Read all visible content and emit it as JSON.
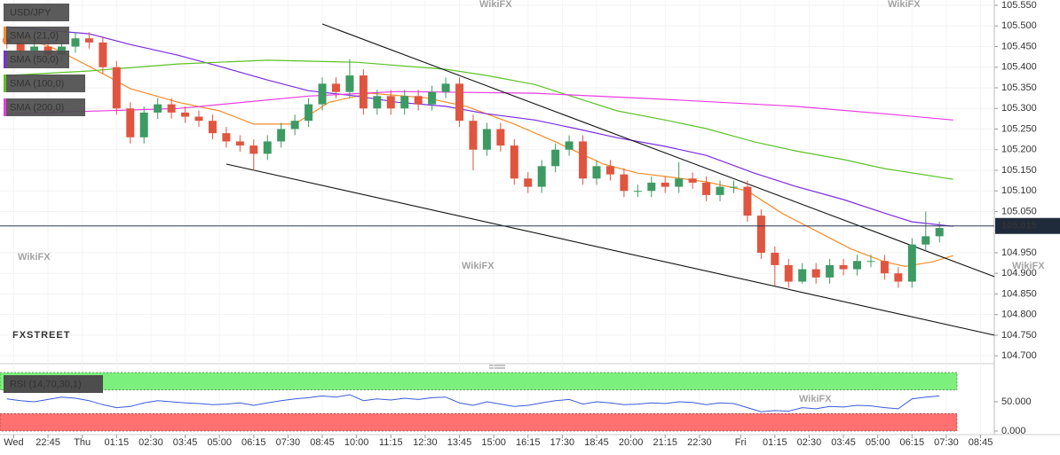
{
  "chart_data": [
    {
      "type": "candlestick",
      "title": "USD/JPY",
      "up_color": "#3d9a62",
      "down_color": "#e0553f",
      "grid": true,
      "x": [
        -6,
        -4,
        -2,
        0,
        2,
        4,
        6,
        8,
        10,
        12,
        14,
        16,
        18,
        20,
        22,
        24,
        26,
        28,
        30,
        32,
        34,
        36,
        38,
        40,
        42,
        44,
        46,
        48,
        50,
        52,
        54,
        56,
        58,
        60,
        62,
        64,
        66,
        68,
        70,
        72,
        74,
        76,
        78,
        80,
        82,
        84,
        86,
        88,
        90,
        92,
        94,
        96,
        98,
        100,
        102,
        104,
        106,
        108,
        110,
        112,
        114,
        116,
        118,
        120,
        122,
        124,
        126,
        128,
        130
      ],
      "open": [
        105.47,
        105.46,
        105.44,
        105.45,
        105.43,
        105.45,
        105.47,
        105.46,
        105.4,
        105.3,
        105.23,
        105.29,
        105.31,
        105.29,
        105.28,
        105.27,
        105.24,
        105.22,
        105.21,
        105.19,
        105.22,
        105.25,
        105.27,
        105.31,
        105.36,
        105.34,
        105.38,
        105.3,
        105.33,
        105.3,
        105.33,
        105.31,
        105.34,
        105.36,
        105.27,
        105.2,
        105.25,
        105.21,
        105.13,
        105.11,
        105.16,
        105.2,
        105.22,
        105.13,
        105.16,
        105.14,
        105.1,
        105.1,
        105.12,
        105.11,
        105.13,
        105.12,
        105.09,
        105.11,
        105.11,
        105.04,
        104.95,
        104.92,
        104.88,
        104.91,
        104.89,
        104.92,
        104.91,
        104.93,
        104.93,
        104.9,
        104.88,
        104.97,
        104.99
      ],
      "high": [
        105.485,
        105.475,
        105.465,
        105.465,
        105.465,
        105.485,
        105.485,
        105.475,
        105.415,
        105.315,
        105.305,
        105.325,
        105.325,
        105.305,
        105.295,
        105.285,
        105.255,
        105.235,
        105.225,
        105.235,
        105.265,
        105.285,
        105.325,
        105.375,
        105.375,
        105.42,
        105.395,
        105.345,
        105.345,
        105.345,
        105.345,
        105.355,
        105.375,
        105.375,
        105.285,
        105.265,
        105.265,
        105.225,
        105.145,
        105.175,
        105.215,
        105.235,
        105.235,
        105.175,
        105.175,
        105.155,
        105.115,
        105.135,
        105.135,
        105.17,
        105.145,
        105.135,
        105.125,
        105.125,
        105.125,
        105.055,
        104.965,
        104.935,
        104.925,
        104.925,
        104.935,
        104.935,
        104.945,
        104.945,
        104.945,
        104.915,
        104.985,
        105.05,
        105.025
      ],
      "low": [
        105.445,
        105.425,
        105.425,
        105.415,
        105.415,
        105.435,
        105.445,
        105.385,
        105.285,
        105.215,
        105.215,
        105.275,
        105.275,
        105.265,
        105.255,
        105.225,
        105.205,
        105.195,
        105.15,
        105.175,
        105.205,
        105.235,
        105.255,
        105.295,
        105.325,
        105.325,
        105.285,
        105.285,
        105.285,
        105.285,
        105.295,
        105.295,
        105.325,
        105.255,
        105.15,
        105.185,
        105.195,
        105.115,
        105.095,
        105.095,
        105.145,
        105.185,
        105.115,
        105.115,
        105.125,
        105.085,
        105.085,
        105.085,
        105.095,
        105.095,
        105.105,
        105.075,
        105.075,
        105.095,
        105.025,
        104.935,
        104.87,
        104.865,
        104.875,
        104.875,
        104.875,
        104.895,
        104.895,
        104.915,
        104.885,
        104.865,
        104.865,
        104.955,
        104.975
      ],
      "close": [
        105.46,
        105.44,
        105.45,
        105.43,
        105.45,
        105.47,
        105.46,
        105.4,
        105.3,
        105.23,
        105.29,
        105.31,
        105.29,
        105.28,
        105.27,
        105.24,
        105.22,
        105.21,
        105.19,
        105.22,
        105.25,
        105.27,
        105.31,
        105.36,
        105.34,
        105.38,
        105.3,
        105.33,
        105.3,
        105.33,
        105.31,
        105.34,
        105.36,
        105.27,
        105.2,
        105.25,
        105.21,
        105.13,
        105.11,
        105.16,
        105.2,
        105.22,
        105.13,
        105.16,
        105.14,
        105.1,
        105.1,
        105.12,
        105.11,
        105.13,
        105.12,
        105.09,
        105.11,
        105.11,
        105.04,
        104.95,
        104.92,
        104.88,
        104.91,
        104.89,
        104.92,
        104.91,
        104.93,
        104.93,
        104.9,
        104.88,
        104.97,
        104.99,
        105.01
      ],
      "series": [
        {
          "name": "SMA (21,0)",
          "color": "#f28c28",
          "x": [
            -6,
            1,
            6,
            12,
            19,
            25,
            30,
            36,
            41,
            47,
            55,
            61,
            68,
            74,
            81,
            86,
            91,
            96,
            102,
            107,
            112,
            117,
            122,
            125,
            129,
            132
          ],
          "values": [
            105.488,
            105.445,
            105.402,
            105.348,
            105.315,
            105.294,
            105.262,
            105.262,
            105.315,
            105.337,
            105.326,
            105.305,
            105.262,
            105.219,
            105.165,
            105.143,
            105.133,
            105.122,
            105.1,
            105.046,
            105.003,
            104.96,
            104.928,
            104.917,
            104.928,
            104.943
          ]
        },
        {
          "name": "SMA (50,0)",
          "color": "#7b2be0",
          "x": [
            -6,
            6,
            12,
            19,
            25,
            32,
            38,
            45,
            51,
            58,
            64,
            71,
            77,
            83,
            90,
            96,
            103,
            109,
            116,
            122,
            126,
            132
          ],
          "values": [
            105.498,
            105.481,
            105.455,
            105.429,
            105.402,
            105.369,
            105.343,
            105.33,
            105.315,
            105.305,
            105.287,
            105.272,
            105.251,
            105.229,
            105.208,
            105.186,
            105.143,
            105.111,
            105.079,
            105.046,
            105.025,
            105.014
          ]
        },
        {
          "name": "SMA (100,0)",
          "color": "#5cc227",
          "x": [
            -6,
            6,
            19,
            32,
            45,
            58,
            64,
            71,
            77,
            83,
            90,
            96,
            103,
            109,
            116,
            122,
            132
          ],
          "values": [
            105.38,
            105.391,
            105.408,
            105.417,
            105.412,
            105.395,
            105.38,
            105.358,
            105.326,
            105.294,
            105.272,
            105.251,
            105.219,
            105.197,
            105.176,
            105.154,
            105.128
          ]
        },
        {
          "name": "SMA (200,0)",
          "color": "#e83ce0",
          "x": [
            -6,
            19,
            38,
            51,
            71,
            90,
            109,
            122,
            132
          ],
          "values": [
            105.287,
            105.3,
            105.33,
            105.341,
            105.337,
            105.322,
            105.305,
            105.287,
            105.272
          ]
        }
      ],
      "trendlines": [
        {
          "x": [
            40,
            138
          ],
          "values": [
            105.505,
            104.892
          ]
        },
        {
          "x": [
            26,
            138
          ],
          "values": [
            105.165,
            104.75
          ]
        }
      ],
      "last_price": 105.015,
      "xlim": [
        -7,
        138
      ],
      "ylim": [
        104.681,
        105.563
      ],
      "xticks": [
        {
          "value": -5,
          "label": "Wed"
        },
        {
          "value": 0,
          "label": "22:45"
        },
        {
          "value": 5,
          "label": "Thu"
        },
        {
          "value": 10,
          "label": "01:15"
        },
        {
          "value": 15,
          "label": "02:30"
        },
        {
          "value": 20,
          "label": "03:45"
        },
        {
          "value": 25,
          "label": "05:00"
        },
        {
          "value": 30,
          "label": "06:15"
        },
        {
          "value": 35,
          "label": "07:30"
        },
        {
          "value": 40,
          "label": "08:45"
        },
        {
          "value": 45,
          "label": "10:00"
        },
        {
          "value": 50,
          "label": "11:15"
        },
        {
          "value": 55,
          "label": "12:30"
        },
        {
          "value": 60,
          "label": "13:45"
        },
        {
          "value": 65,
          "label": "15:00"
        },
        {
          "value": 70,
          "label": "16:15"
        },
        {
          "value": 75,
          "label": "17:30"
        },
        {
          "value": 80,
          "label": "18:45"
        },
        {
          "value": 85,
          "label": "20:00"
        },
        {
          "value": 90,
          "label": "21:15"
        },
        {
          "value": 95,
          "label": "22:30"
        },
        {
          "value": 101,
          "label": "Fri"
        },
        {
          "value": 106,
          "label": "01:15"
        },
        {
          "value": 111,
          "label": "02:30"
        },
        {
          "value": 116,
          "label": "03:45"
        },
        {
          "value": 121,
          "label": "05:00"
        },
        {
          "value": 126,
          "label": "06:15"
        },
        {
          "value": 131,
          "label": "07:30"
        },
        {
          "value": 136,
          "label": "08:45"
        }
      ],
      "yticks": [
        {
          "value": 104.7,
          "label": "104.700"
        },
        {
          "value": 104.75,
          "label": "104.750"
        },
        {
          "value": 104.8,
          "label": "104.800"
        },
        {
          "value": 104.85,
          "label": "104.850"
        },
        {
          "value": 104.9,
          "label": "104.900"
        },
        {
          "value": 104.95,
          "label": "104.950"
        },
        {
          "value": 105.05,
          "label": "105.050"
        },
        {
          "value": 105.1,
          "label": "105.100"
        },
        {
          "value": 105.15,
          "label": "105.150"
        },
        {
          "value": 105.2,
          "label": "105.200"
        },
        {
          "value": 105.25,
          "label": "105.250"
        },
        {
          "value": 105.3,
          "label": "105.300"
        },
        {
          "value": 105.35,
          "label": "105.350"
        },
        {
          "value": 105.4,
          "label": "105.400"
        },
        {
          "value": 105.45,
          "label": "105.450"
        },
        {
          "value": 105.5,
          "label": "105.500"
        },
        {
          "value": 105.55,
          "label": "105.550"
        }
      ],
      "logo": "FXSTREET",
      "watermark": "WikiFX"
    },
    {
      "type": "line",
      "title": "RSI (14,70,30,1)",
      "color": "#3a5bd9",
      "x": [
        -6,
        -4,
        -2,
        0,
        2,
        4,
        6,
        8,
        10,
        12,
        14,
        16,
        18,
        20,
        22,
        24,
        26,
        28,
        30,
        32,
        34,
        36,
        38,
        40,
        42,
        44,
        46,
        48,
        50,
        52,
        54,
        56,
        58,
        60,
        62,
        64,
        66,
        68,
        70,
        72,
        74,
        76,
        78,
        80,
        82,
        84,
        86,
        88,
        90,
        92,
        94,
        96,
        98,
        100,
        102,
        104,
        106,
        108,
        110,
        112,
        114,
        116,
        118,
        120,
        122,
        124,
        126,
        128,
        130
      ],
      "values": [
        55,
        52,
        50,
        54,
        58,
        56,
        52,
        45,
        40,
        42,
        48,
        52,
        50,
        48,
        47,
        45,
        46,
        48,
        44,
        48,
        52,
        55,
        57,
        60,
        58,
        62,
        52,
        55,
        53,
        56,
        54,
        57,
        58,
        48,
        44,
        50,
        46,
        42,
        44,
        48,
        52,
        54,
        46,
        50,
        48,
        45,
        46,
        48,
        47,
        50,
        49,
        45,
        48,
        47,
        40,
        33,
        35,
        34,
        40,
        38,
        42,
        41,
        44,
        43,
        40,
        38,
        55,
        58,
        60
      ],
      "bands": [
        {
          "from": 70,
          "to": 100,
          "color": "#7cf07c"
        },
        {
          "from": 0,
          "to": 30,
          "color": "#ff7070"
        }
      ],
      "ylim": [
        0,
        100
      ],
      "yticks": [
        {
          "value": 0,
          "label": "0.000"
        },
        {
          "value": 50,
          "label": "50.000"
        }
      ]
    }
  ]
}
